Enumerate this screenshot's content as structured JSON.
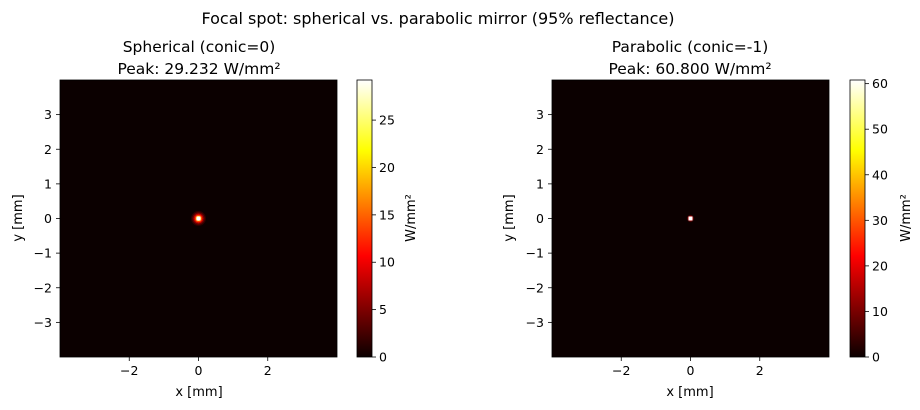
{
  "figure": {
    "suptitle": "Focal spot: spherical vs. parabolic mirror (95% reflectance)"
  },
  "chart_data": [
    {
      "type": "heatmap",
      "title_line1": "Spherical (conic=0)",
      "title_line2": "Peak: 29.232 W/mm²",
      "xlabel": "x [mm]",
      "ylabel": "y [mm]",
      "xlim": [
        -4,
        4
      ],
      "ylim": [
        -4,
        4
      ],
      "xticks": [
        -2,
        0,
        2
      ],
      "yticks": [
        -3,
        -2,
        -1,
        0,
        1,
        2,
        3
      ],
      "colormap": "hot",
      "colorbar": {
        "label": "W/mm²",
        "min": 0,
        "max": 29.232,
        "ticks": [
          0,
          5,
          10,
          15,
          20,
          25
        ]
      },
      "spot": {
        "x": 0,
        "y": 0,
        "peak": 29.232,
        "radius_mm": 0.12
      },
      "background_value": 0
    },
    {
      "type": "heatmap",
      "title_line1": "Parabolic (conic=-1)",
      "title_line2": "Peak: 60.800 W/mm²",
      "xlabel": "x [mm]",
      "ylabel": "y [mm]",
      "xlim": [
        -4,
        4
      ],
      "ylim": [
        -4,
        4
      ],
      "xticks": [
        -2,
        0,
        2
      ],
      "yticks": [
        -3,
        -2,
        -1,
        0,
        1,
        2,
        3
      ],
      "colormap": "hot",
      "colorbar": {
        "label": "W/mm²",
        "min": 0,
        "max": 60.8,
        "ticks": [
          0,
          10,
          20,
          30,
          40,
          50,
          60
        ]
      },
      "spot": {
        "x": 0,
        "y": 0,
        "peak": 60.8,
        "radius_mm": 0.06
      },
      "background_value": 0
    }
  ]
}
